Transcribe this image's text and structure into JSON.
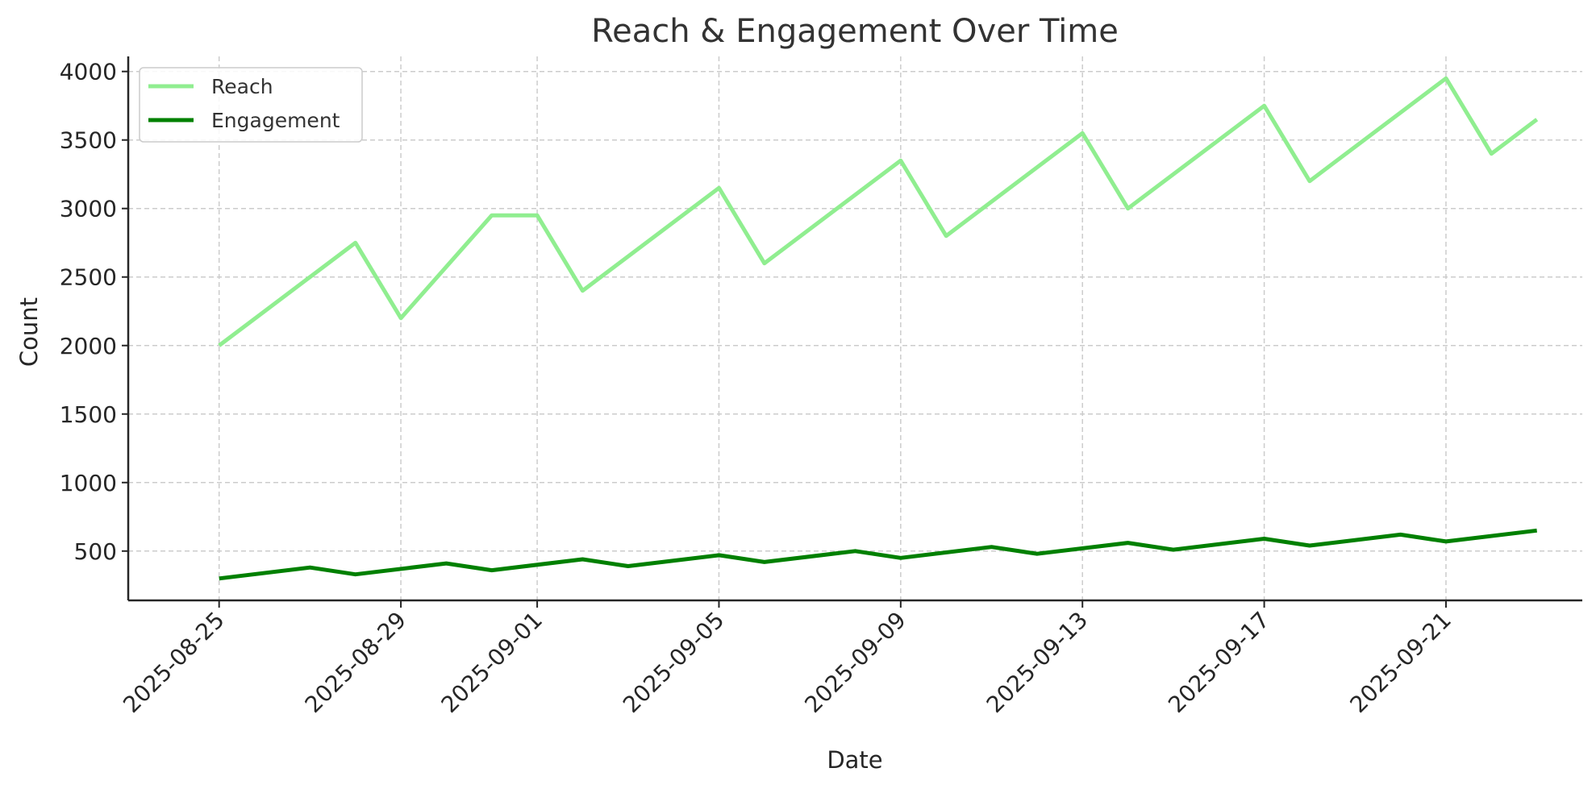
{
  "chart_data": {
    "type": "line",
    "title": "Reach & Engagement Over Time",
    "xlabel": "Date",
    "ylabel": "Count",
    "x": [
      "2025-08-25",
      "2025-08-27",
      "2025-08-28",
      "2025-08-29",
      "2025-08-31",
      "2025-09-01",
      "2025-09-02",
      "2025-09-05",
      "2025-09-06",
      "2025-09-09",
      "2025-09-10",
      "2025-09-13",
      "2025-09-14",
      "2025-09-17",
      "2025-09-18",
      "2025-09-21",
      "2025-09-22",
      "2025-09-23"
    ],
    "series": [
      {
        "name": "Reach",
        "color": "#90ee90",
        "values": [
          2000,
          2500,
          2750,
          2200,
          2950,
          2950,
          2400,
          3150,
          2600,
          3350,
          2800,
          3550,
          3000,
          3750,
          3200,
          3950,
          3400,
          3650
        ]
      },
      {
        "name": "Engagement",
        "color": "#008000",
        "x": [
          "2025-08-25",
          "2025-08-27",
          "2025-08-28",
          "2025-08-30",
          "2025-08-31",
          "2025-09-02",
          "2025-09-03",
          "2025-09-05",
          "2025-09-06",
          "2025-09-08",
          "2025-09-09",
          "2025-09-11",
          "2025-09-12",
          "2025-09-14",
          "2025-09-15",
          "2025-09-17",
          "2025-09-18",
          "2025-09-20",
          "2025-09-21",
          "2025-09-23"
        ],
        "values": [
          300,
          380,
          330,
          410,
          360,
          440,
          390,
          470,
          420,
          500,
          450,
          530,
          480,
          560,
          510,
          590,
          540,
          620,
          570,
          650
        ]
      }
    ],
    "x_ticks": [
      "2025-08-25",
      "2025-08-29",
      "2025-09-01",
      "2025-09-05",
      "2025-09-09",
      "2025-09-13",
      "2025-09-17",
      "2025-09-21"
    ],
    "y_ticks": [
      500,
      1000,
      1500,
      2000,
      2500,
      3000,
      3500,
      4000
    ],
    "xlim": [
      "2025-08-23",
      "2025-09-24"
    ],
    "ylim": [
      140,
      4110
    ],
    "grid": true,
    "legend_position": "top-left"
  }
}
